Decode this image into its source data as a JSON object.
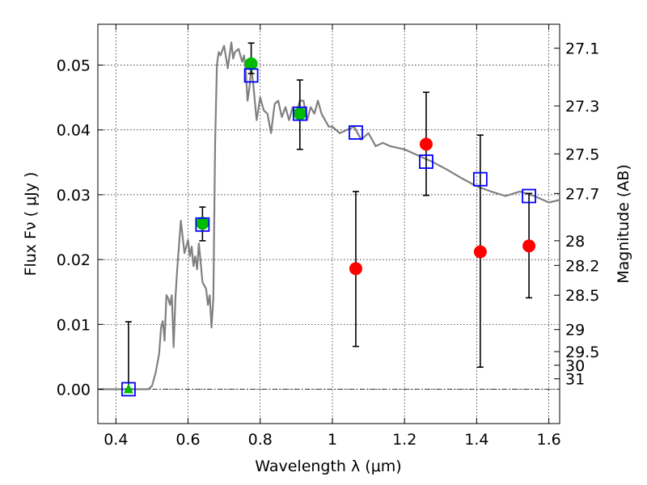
{
  "chart_data": {
    "type": "scatter",
    "xlabel": "Wavelength  λ (μm)",
    "ylabel": "Flux  Fν  ( μJy )",
    "y2label": "Magnitude (AB)",
    "xlim": [
      0.35,
      1.63
    ],
    "ylim": [
      -0.0053,
      0.0563
    ],
    "grid": true,
    "x_ticks": [
      0.4,
      0.6,
      0.8,
      1.0,
      1.2,
      1.4,
      1.6
    ],
    "x_tick_labels": [
      "0.4",
      "0.6",
      "0.8",
      "1",
      "1.2",
      "1.4",
      "1.6"
    ],
    "y_ticks": [
      0.0,
      0.01,
      0.02,
      0.03,
      0.04,
      0.05
    ],
    "y_tick_labels": [
      "0.00",
      "0.01",
      "0.02",
      "0.03",
      "0.04",
      "0.05"
    ],
    "magnitude_ticks": [
      {
        "label": "27.1",
        "flux": 0.0526
      },
      {
        "label": "27.3",
        "flux": 0.0437
      },
      {
        "label": "27.5",
        "flux": 0.0363
      },
      {
        "label": "27.7",
        "flux": 0.0302
      },
      {
        "label": "28",
        "flux": 0.0229
      },
      {
        "label": "28.2",
        "flux": 0.0191
      },
      {
        "label": "28.5",
        "flux": 0.0145
      },
      {
        "label": "29",
        "flux": 0.0092
      },
      {
        "label": "29.5",
        "flux": 0.0058
      },
      {
        "label": "30",
        "flux": 0.0037
      },
      {
        "label": "31",
        "flux": 0.0016
      }
    ],
    "sed_model_line": {
      "color": "#808080",
      "x": [
        0.35,
        0.44,
        0.49,
        0.5,
        0.51,
        0.52,
        0.525,
        0.53,
        0.535,
        0.54,
        0.545,
        0.55,
        0.555,
        0.56,
        0.565,
        0.57,
        0.58,
        0.59,
        0.6,
        0.605,
        0.61,
        0.615,
        0.62,
        0.625,
        0.63,
        0.64,
        0.65,
        0.655,
        0.66,
        0.665,
        0.67,
        0.675,
        0.68,
        0.685,
        0.69,
        0.7,
        0.71,
        0.72,
        0.725,
        0.73,
        0.74,
        0.75,
        0.755,
        0.76,
        0.765,
        0.77,
        0.775,
        0.78,
        0.79,
        0.8,
        0.81,
        0.82,
        0.83,
        0.84,
        0.85,
        0.86,
        0.87,
        0.88,
        0.89,
        0.9,
        0.91,
        0.92,
        0.93,
        0.94,
        0.95,
        0.96,
        0.97,
        0.98,
        0.99,
        1.0,
        1.02,
        1.04,
        1.06,
        1.08,
        1.1,
        1.12,
        1.14,
        1.16,
        1.2,
        1.24,
        1.28,
        1.32,
        1.36,
        1.4,
        1.44,
        1.48,
        1.52,
        1.56,
        1.6,
        1.63
      ],
      "y": [
        0.0,
        0.0,
        0.0,
        0.0005,
        0.0025,
        0.0055,
        0.0095,
        0.0105,
        0.0075,
        0.0145,
        0.014,
        0.013,
        0.0145,
        0.0065,
        0.014,
        0.0185,
        0.026,
        0.021,
        0.023,
        0.0205,
        0.022,
        0.019,
        0.0205,
        0.0185,
        0.0225,
        0.0165,
        0.0155,
        0.013,
        0.0145,
        0.0095,
        0.014,
        0.038,
        0.05,
        0.052,
        0.0515,
        0.053,
        0.0495,
        0.0535,
        0.051,
        0.052,
        0.0525,
        0.0505,
        0.0515,
        0.049,
        0.0445,
        0.0465,
        0.0495,
        0.0475,
        0.0415,
        0.045,
        0.043,
        0.0425,
        0.0395,
        0.044,
        0.0445,
        0.042,
        0.0435,
        0.0415,
        0.0435,
        0.0425,
        0.0445,
        0.0445,
        0.0415,
        0.0435,
        0.0425,
        0.0445,
        0.0425,
        0.0415,
        0.0405,
        0.0405,
        0.0395,
        0.04,
        0.0405,
        0.0385,
        0.0395,
        0.0375,
        0.038,
        0.0375,
        0.037,
        0.036,
        0.035,
        0.0338,
        0.0325,
        0.0313,
        0.0305,
        0.0298,
        0.0305,
        0.0298,
        0.0288,
        0.0292
      ]
    },
    "error_bars": [
      {
        "x": 0.435,
        "low": 0.0,
        "high": 0.0104
      },
      {
        "x": 0.64,
        "low": 0.0229,
        "high": 0.0281
      },
      {
        "x": 0.775,
        "low": 0.0487,
        "high": 0.0534
      },
      {
        "x": 0.91,
        "low": 0.037,
        "high": 0.0477
      },
      {
        "x": 1.065,
        "low": 0.0066,
        "high": 0.0305
      },
      {
        "x": 1.26,
        "low": 0.0299,
        "high": 0.0458
      },
      {
        "x": 1.41,
        "low": 0.0034,
        "high": 0.0392
      },
      {
        "x": 1.545,
        "low": 0.0141,
        "high": 0.0302
      }
    ],
    "model_fluxes": {
      "marker": "open-square",
      "color": "#0000ff",
      "x": [
        0.435,
        0.64,
        0.775,
        0.91,
        1.065,
        1.26,
        1.41,
        1.545
      ],
      "y": [
        0.0,
        0.0254,
        0.0484,
        0.0425,
        0.0396,
        0.0351,
        0.0324,
        0.0298
      ]
    },
    "detections": {
      "marker": "filled-circle",
      "color": "#00bb00",
      "x": [
        0.64,
        0.775,
        0.91
      ],
      "y": [
        0.0256,
        0.0502,
        0.0425
      ]
    },
    "upper_limits": {
      "marker": "filled-triangle",
      "color": "#00bb00",
      "x": [
        0.435
      ],
      "y": [
        0.0
      ]
    },
    "low_significance": {
      "marker": "filled-circle",
      "color": "#ff0000",
      "x": [
        1.065,
        1.26,
        1.41,
        1.545
      ],
      "y": [
        0.0186,
        0.0378,
        0.0212,
        0.0221
      ]
    }
  }
}
